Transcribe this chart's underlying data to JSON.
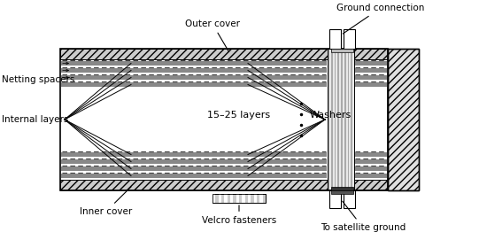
{
  "fig_width": 5.41,
  "fig_height": 2.62,
  "dpi": 100,
  "bg_color": "#ffffff",
  "lc": "#000000",
  "labels": {
    "outer_cover": "Outer cover",
    "ground_connection": "Ground connection",
    "netting_spacers": "Netting spacers",
    "internal_layers": "Internal layers",
    "layers_text": "15–25 layers",
    "washers": "Washers",
    "inner_cover": "Inner cover",
    "velcro": "Velcro fasteners",
    "satellite_ground": "To satellite ground"
  }
}
